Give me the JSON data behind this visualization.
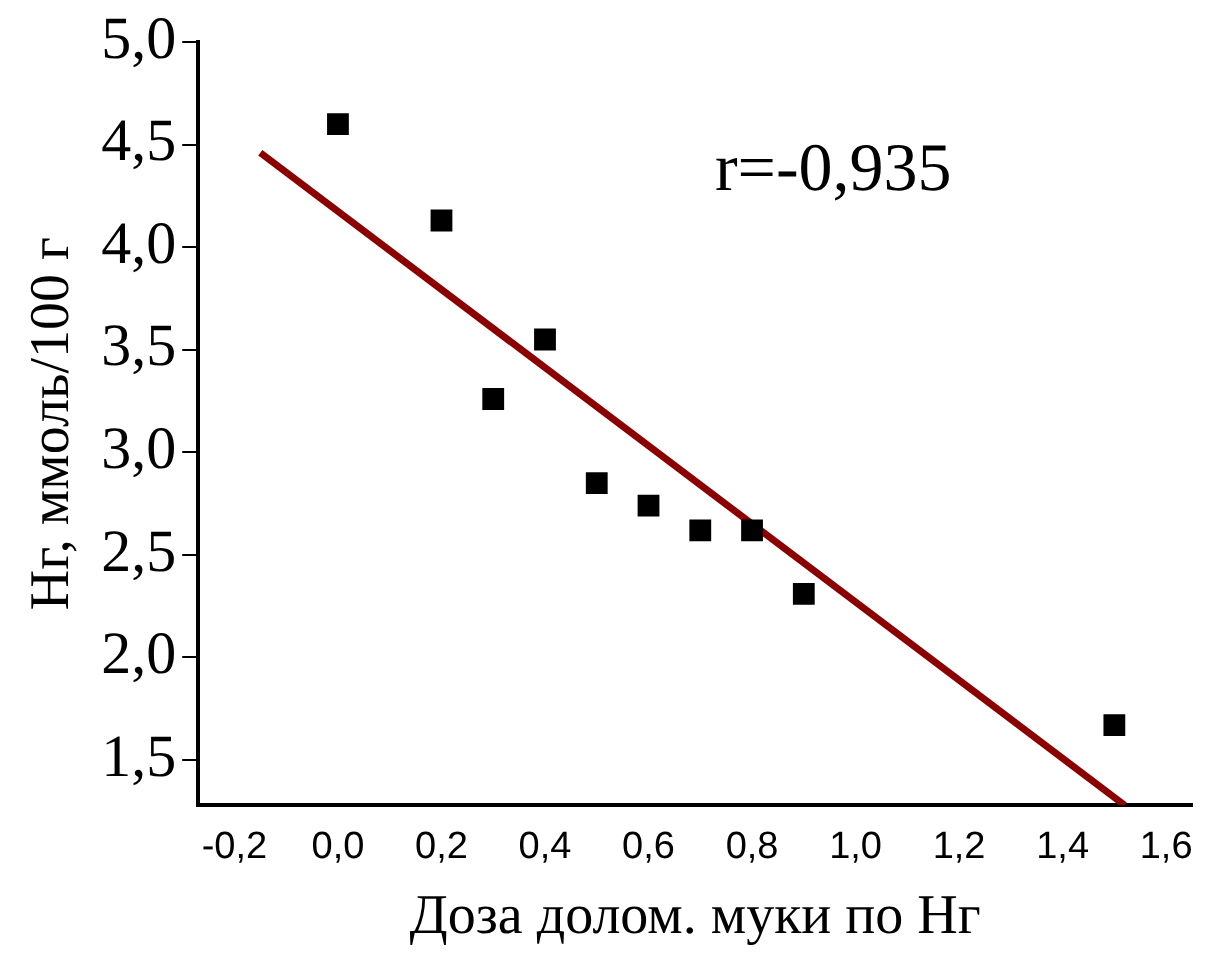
{
  "chart_data": {
    "type": "scatter",
    "xlabel": "Доза долом. муки по Нг",
    "ylabel": "Нг, ммоль/100 г",
    "annotations": [
      "r=-0,935"
    ],
    "xlim": [
      -0.27,
      1.65
    ],
    "ylim": [
      1.28,
      5.0
    ],
    "xticks": [
      {
        "value": -0.2,
        "label": "-0,2"
      },
      {
        "value": 0,
        "label": "0,0"
      },
      {
        "value": 0.2,
        "label": "0,2"
      },
      {
        "value": 0.4,
        "label": "0,4"
      },
      {
        "value": 0.6,
        "label": "0,6"
      },
      {
        "value": 0.8,
        "label": "0,8"
      },
      {
        "value": 1.0,
        "label": "1,0"
      },
      {
        "value": 1.2,
        "label": "1,2"
      },
      {
        "value": 1.4,
        "label": "1,4"
      },
      {
        "value": 1.6,
        "label": "1,6"
      }
    ],
    "yticks": [
      {
        "value": 1.5,
        "label": "1,5"
      },
      {
        "value": 2.0,
        "label": "2,0"
      },
      {
        "value": 2.5,
        "label": "2,5"
      },
      {
        "value": 3.0,
        "label": "3,0"
      },
      {
        "value": 3.5,
        "label": "3,5"
      },
      {
        "value": 4.0,
        "label": "4,0"
      },
      {
        "value": 4.5,
        "label": "4,5"
      },
      {
        "value": 5.0,
        "label": "5,0"
      }
    ],
    "grid": false,
    "legend": false,
    "series": [
      {
        "marker": "square",
        "color": "#000000",
        "x": [
          0,
          0.2,
          0.3,
          0.4,
          0.5,
          0.6,
          0.7,
          0.8,
          0.9,
          1.5
        ],
        "values": [
          4.6,
          4.13,
          3.26,
          3.55,
          2.85,
          2.74,
          2.62,
          2.62,
          2.31,
          1.67
        ]
      },
      {
        "type": "line",
        "marker": "none",
        "color": "#8b0000",
        "x": [
          -0.15,
          1.52
        ],
        "values": [
          4.46,
          1.28
        ]
      }
    ]
  }
}
